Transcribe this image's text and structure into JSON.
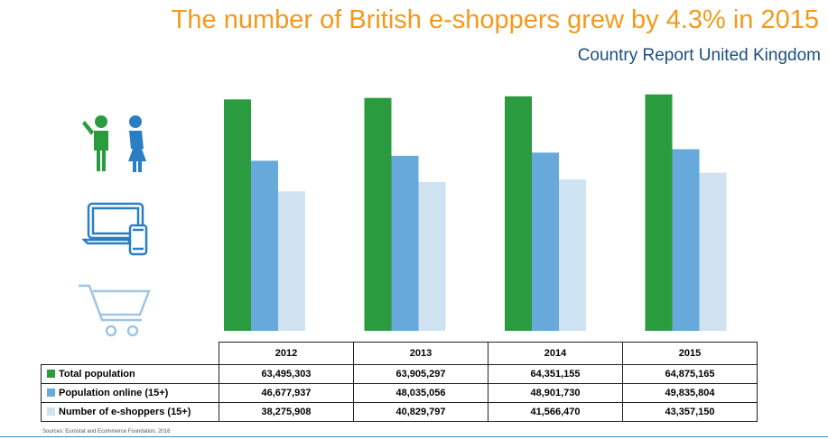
{
  "title": "The number of British e-shoppers grew by 4.3% in 2015",
  "subtitle": "Country Report United Kingdom",
  "source": "Sources: Eurostat and Ecommerce Foundation, 2016",
  "colors": {
    "title": "#f39a1c",
    "subtitle": "#1c4e80",
    "total": "#2a9b3e",
    "online": "#66a9da",
    "eshoppers": "#cfe2f2",
    "rule": "#3d8ec9"
  },
  "icons": [
    "people-icon",
    "laptop-phone-icon",
    "shopping-cart-icon"
  ],
  "chart_data": {
    "type": "bar",
    "categories": [
      "2012",
      "2013",
      "2014",
      "2015"
    ],
    "series": [
      {
        "name": "Total population",
        "values": [
          63495303,
          63905297,
          64351155,
          64875165
        ]
      },
      {
        "name": "Population online (15+)",
        "values": [
          46677937,
          48035056,
          48901730,
          49835804
        ]
      },
      {
        "name": "Number of e-shoppers (15+)",
        "values": [
          38275908,
          40829797,
          41566470,
          43357150
        ]
      }
    ],
    "ylim": [
      0,
      70000000
    ]
  },
  "table": {
    "headers": [
      "2012",
      "2013",
      "2014",
      "2015"
    ],
    "rows": [
      {
        "label": "Total population",
        "values": [
          "63,495,303",
          "63,905,297",
          "64,351,155",
          "64,875,165"
        ]
      },
      {
        "label": "Population online (15+)",
        "values": [
          "46,677,937",
          "48,035,056",
          "48,901,730",
          "49,835,804"
        ]
      },
      {
        "label": "Number of e-shoppers (15+)",
        "values": [
          "38,275,908",
          "40,829,797",
          "41,566,470",
          "43,357,150"
        ]
      }
    ]
  }
}
